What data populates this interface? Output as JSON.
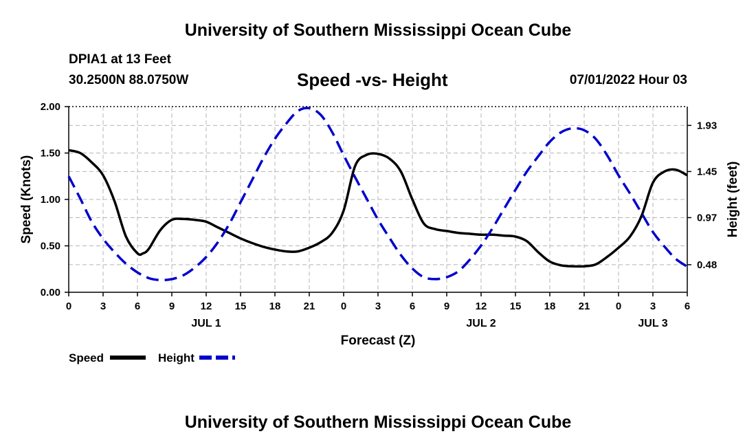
{
  "header": {
    "title": "University of Southern Mississippi Ocean Cube",
    "station": "DPIA1 at 13 Feet",
    "coords": "30.2500N  88.0750W",
    "subtitle": "Speed -vs- Height",
    "datetime": "07/01/2022 Hour 03"
  },
  "footer": {
    "title": "University of Southern Mississippi Ocean Cube"
  },
  "colors": {
    "speed": "#000000",
    "height": "#0000cc",
    "grid": "#b4b4b4"
  },
  "chart_data": {
    "type": "line",
    "title": "Speed -vs- Height",
    "xlabel": "Forecast (Z)",
    "ylabel": "Speed (Knots)",
    "y2label": "Height (feet)",
    "xlim": [
      0,
      54
    ],
    "ylim": [
      0,
      2.0
    ],
    "y2lim": [
      0.193,
      2.126
    ],
    "x_ticks": [
      0,
      3,
      6,
      9,
      12,
      15,
      18,
      21,
      24,
      27,
      30,
      33,
      36,
      39,
      42,
      45,
      48,
      51,
      54
    ],
    "x_tick_labels": [
      "0",
      "3",
      "6",
      "9",
      "12",
      "15",
      "18",
      "21",
      "0",
      "3",
      "6",
      "9",
      "12",
      "15",
      "18",
      "21",
      "0",
      "3",
      "6"
    ],
    "day_labels": [
      {
        "x": 12,
        "label": "JUL 1"
      },
      {
        "x": 36,
        "label": "JUL 2"
      },
      {
        "x": 51,
        "label": "JUL 3"
      }
    ],
    "y_ticks": [
      0.0,
      0.5,
      1.0,
      1.5,
      2.0
    ],
    "y_tick_labels": [
      "0.00",
      "0.50",
      "1.00",
      "1.50",
      "2.00"
    ],
    "y2_ticks": [
      0.48,
      0.97,
      1.45,
      1.93
    ],
    "y2_tick_labels": [
      "0.48",
      "0.97",
      "1.45",
      "1.93"
    ],
    "grid": true,
    "legend": [
      {
        "name": "Speed",
        "style": "solid"
      },
      {
        "name": "Height",
        "style": "dashed"
      }
    ],
    "series": [
      {
        "name": "Speed",
        "axis": "left",
        "style": "solid",
        "x": [
          0,
          1,
          2,
          3,
          4,
          5,
          6,
          6.5,
          7,
          8,
          9,
          10,
          11,
          12,
          13,
          14,
          15,
          16,
          17,
          18,
          19,
          20,
          21,
          22,
          23,
          24,
          25,
          26,
          27,
          28,
          29,
          30,
          31,
          32,
          33,
          34,
          35,
          36,
          37,
          38,
          39,
          40,
          41,
          42,
          43,
          44,
          45,
          46,
          47,
          48,
          49,
          50,
          51,
          52,
          53,
          54
        ],
        "y": [
          1.53,
          1.5,
          1.4,
          1.26,
          0.98,
          0.6,
          0.42,
          0.42,
          0.47,
          0.67,
          0.78,
          0.79,
          0.78,
          0.76,
          0.7,
          0.64,
          0.58,
          0.53,
          0.49,
          0.46,
          0.44,
          0.44,
          0.48,
          0.54,
          0.64,
          0.88,
          1.36,
          1.48,
          1.49,
          1.44,
          1.3,
          1.0,
          0.74,
          0.68,
          0.66,
          0.64,
          0.63,
          0.62,
          0.62,
          0.61,
          0.6,
          0.55,
          0.43,
          0.33,
          0.29,
          0.28,
          0.28,
          0.3,
          0.38,
          0.48,
          0.6,
          0.82,
          1.18,
          1.3,
          1.32,
          1.26
        ]
      },
      {
        "name": "Height",
        "axis": "right",
        "style": "dashed",
        "x": [
          0,
          1,
          2,
          3,
          4,
          5,
          6,
          7,
          8,
          9,
          10,
          11,
          12,
          13,
          14,
          15,
          16,
          17,
          18,
          19,
          20,
          21,
          22,
          23,
          24,
          25,
          26,
          27,
          28,
          29,
          30,
          31,
          32,
          33,
          34,
          35,
          36,
          37,
          38,
          39,
          40,
          41,
          42,
          43,
          44,
          45,
          46,
          47,
          48,
          49,
          50,
          51,
          52,
          53,
          54
        ],
        "y": [
          1.4,
          1.17,
          0.93,
          0.75,
          0.61,
          0.49,
          0.4,
          0.34,
          0.32,
          0.33,
          0.37,
          0.45,
          0.56,
          0.71,
          0.9,
          1.13,
          1.36,
          1.59,
          1.79,
          1.95,
          2.08,
          2.11,
          2.04,
          1.86,
          1.62,
          1.39,
          1.17,
          0.95,
          0.76,
          0.58,
          0.44,
          0.35,
          0.33,
          0.35,
          0.41,
          0.53,
          0.68,
          0.86,
          1.06,
          1.26,
          1.45,
          1.61,
          1.76,
          1.86,
          1.9,
          1.88,
          1.79,
          1.62,
          1.41,
          1.22,
          1.02,
          0.82,
          0.67,
          0.54,
          0.46
        ]
      }
    ]
  }
}
